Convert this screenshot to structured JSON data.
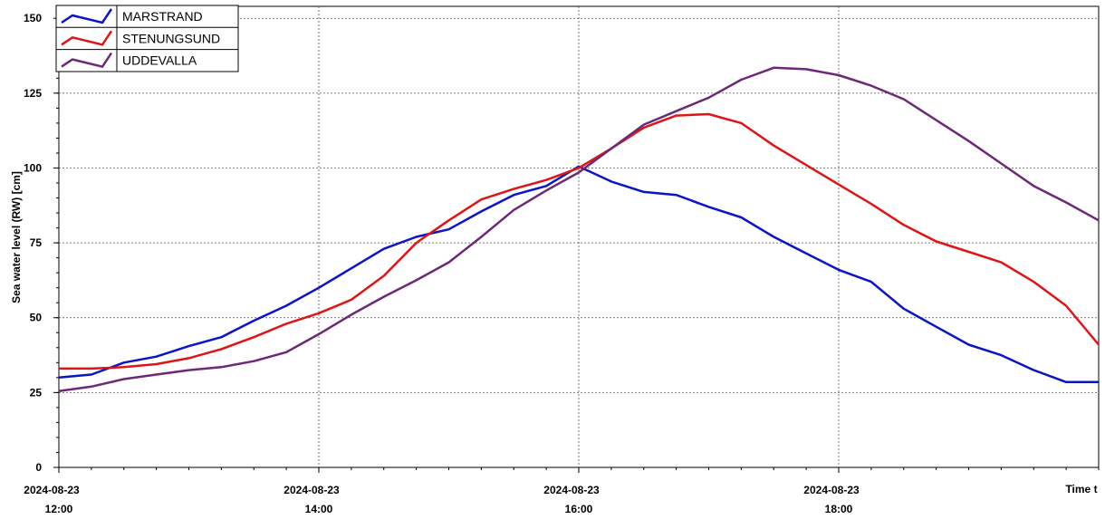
{
  "chart_data": {
    "type": "line",
    "y_label": "Sea water level (RW) [cm]",
    "x_label": "Time t",
    "x": [
      "2024-08-23 12:00",
      "2024-08-23 12:15",
      "2024-08-23 12:30",
      "2024-08-23 12:45",
      "2024-08-23 13:00",
      "2024-08-23 13:15",
      "2024-08-23 13:30",
      "2024-08-23 13:45",
      "2024-08-23 14:00",
      "2024-08-23 14:15",
      "2024-08-23 14:30",
      "2024-08-23 14:45",
      "2024-08-23 15:00",
      "2024-08-23 15:15",
      "2024-08-23 15:30",
      "2024-08-23 15:45",
      "2024-08-23 16:00",
      "2024-08-23 16:15",
      "2024-08-23 16:30",
      "2024-08-23 16:45",
      "2024-08-23 17:00",
      "2024-08-23 17:15",
      "2024-08-23 17:30",
      "2024-08-23 17:45",
      "2024-08-23 18:00",
      "2024-08-23 18:15",
      "2024-08-23 18:30",
      "2024-08-23 18:45",
      "2024-08-23 19:00",
      "2024-08-23 19:15",
      "2024-08-23 19:30",
      "2024-08-23 19:45",
      "2024-08-23 20:00"
    ],
    "series": [
      {
        "name": "MARSTRAND",
        "color": "#0a14c8",
        "values": [
          30,
          31,
          35,
          37,
          40.5,
          43.5,
          49,
          54,
          60,
          66.5,
          73,
          77,
          79.5,
          85.5,
          91,
          94,
          100.5,
          95.5,
          92,
          91,
          87,
          83.5,
          77,
          71.5,
          66,
          62,
          53,
          47,
          41,
          37.5,
          32.5,
          28.5,
          28.5
        ]
      },
      {
        "name": "STENUNGSUND",
        "color": "#e01414",
        "values": [
          33,
          33,
          33.5,
          34.5,
          36.5,
          39.5,
          43.5,
          48,
          51.5,
          56,
          64,
          75,
          82.5,
          89.5,
          93,
          96,
          100,
          106.5,
          113.5,
          117.5,
          118,
          115,
          107.5,
          101,
          94.5,
          88,
          81,
          75.5,
          72,
          68.5,
          62,
          54,
          41
        ]
      },
      {
        "name": "UDDEVALLA",
        "color": "#6e2878",
        "values": [
          25.5,
          27,
          29.5,
          31,
          32.5,
          33.5,
          35.5,
          38.5,
          44.5,
          51,
          57,
          62.5,
          68.5,
          77,
          86,
          92.5,
          98.5,
          106.5,
          114.5,
          119,
          123.5,
          129.5,
          133.5,
          133,
          131,
          127.5,
          123,
          116,
          109,
          101.5,
          94,
          88.5,
          82.5
        ]
      }
    ],
    "xlim": [
      "2024-08-23 12:00",
      "2024-08-23 20:00"
    ],
    "xticks": [
      {
        "value": "2024-08-23 12:00",
        "label": [
          "2024-08-23",
          "12:00"
        ]
      },
      {
        "value": "2024-08-23 14:00",
        "label": [
          "2024-08-23",
          "14:00"
        ]
      },
      {
        "value": "2024-08-23 16:00",
        "label": [
          "2024-08-23",
          "16:00"
        ]
      },
      {
        "value": "2024-08-23 18:00",
        "label": [
          "2024-08-23",
          "18:00"
        ]
      }
    ],
    "ylim": [
      0,
      154
    ],
    "yticks": [
      0,
      25,
      50,
      75,
      100,
      125,
      150
    ],
    "grid": true,
    "legend": "top-left"
  }
}
